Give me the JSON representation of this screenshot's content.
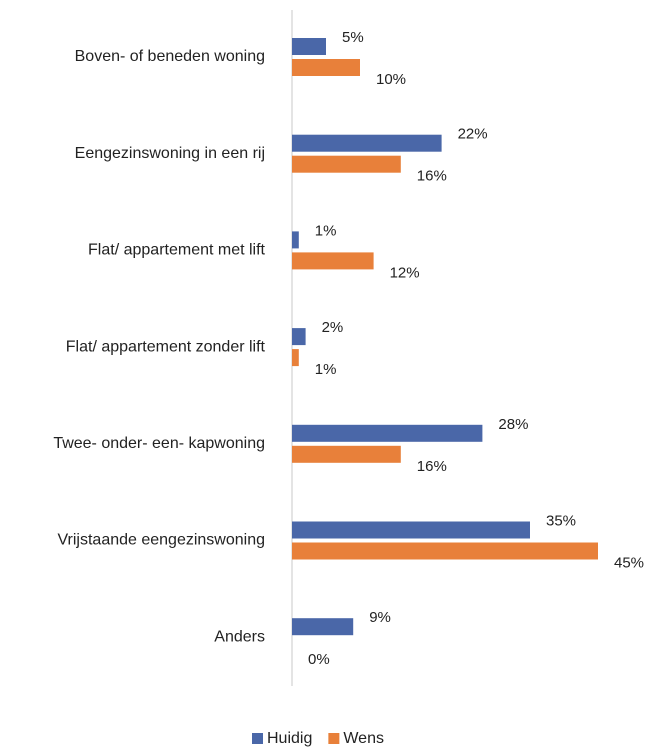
{
  "chart_data": {
    "type": "hbar",
    "categories": [
      "Boven- of beneden woning",
      "Eengezinswoning in een rij",
      "Flat/ appartement met lift",
      "Flat/ appartement zonder lift",
      "Twee- onder- een- kapwoning",
      "Vrijstaande eengezinswoning",
      "Anders"
    ],
    "series": [
      {
        "name": "Huidig",
        "color": "#4a67a8",
        "values": [
          5,
          22,
          1,
          2,
          28,
          35,
          9
        ],
        "value_labels": [
          "5%",
          "22%",
          "1%",
          "2%",
          "28%",
          "35%",
          "9%"
        ]
      },
      {
        "name": "Wens",
        "color": "#e8803a",
        "values": [
          10,
          16,
          12,
          1,
          16,
          45,
          0
        ],
        "value_labels": [
          "10%",
          "16%",
          "12%",
          "1%",
          "16%",
          "45%",
          "0%"
        ]
      }
    ],
    "legend": "bottom"
  }
}
